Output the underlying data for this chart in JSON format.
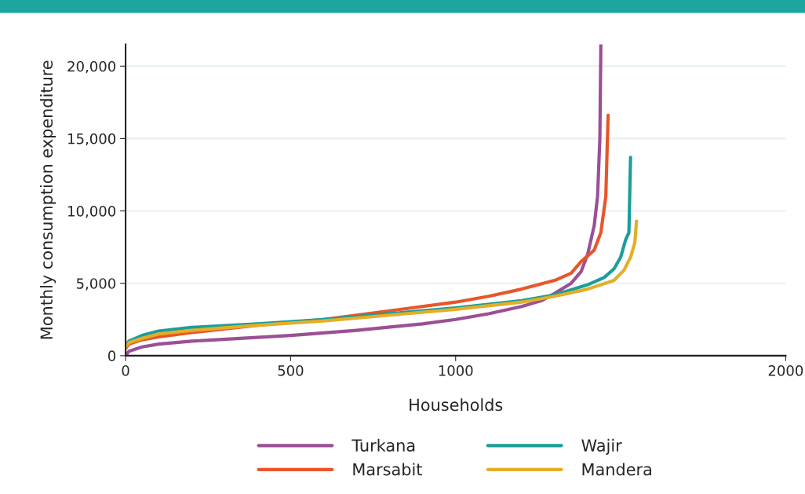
{
  "chart_data": {
    "type": "line",
    "xlabel": "Households",
    "ylabel": "Monthly consumption expenditure",
    "xlim": [
      0,
      2000
    ],
    "xticks": [
      0,
      500,
      1000,
      2000
    ],
    "ylim": [
      0,
      21500
    ],
    "yticks": [
      0,
      {
        "value": 5000,
        "label": "5,000"
      },
      {
        "value": 10000,
        "label": "10,000"
      },
      {
        "value": 15000,
        "label": "15,000"
      },
      {
        "value": 20000,
        "label": "20,000"
      }
    ],
    "grid": "y",
    "legend": "bottom",
    "line_style": "solid",
    "marker": "none",
    "series": [
      {
        "name": "Turkana",
        "color": "#9b4f96",
        "x": [
          0,
          10,
          50,
          100,
          200,
          500,
          700,
          900,
          1000,
          1100,
          1200,
          1260,
          1300,
          1350,
          1380,
          1400,
          1420,
          1430,
          1437,
          1440
        ],
        "values": [
          0,
          300,
          600,
          800,
          1000,
          1400,
          1750,
          2200,
          2500,
          2900,
          3400,
          3800,
          4300,
          5000,
          5800,
          7000,
          9000,
          11000,
          15000,
          21500
        ]
      },
      {
        "name": "Marsabit",
        "color": "#e8562a",
        "x": [
          0,
          10,
          50,
          100,
          200,
          400,
          600,
          800,
          1000,
          1100,
          1200,
          1300,
          1350,
          1380,
          1420,
          1440,
          1455,
          1462
        ],
        "values": [
          500,
          800,
          1100,
          1300,
          1600,
          2100,
          2500,
          3100,
          3700,
          4100,
          4600,
          5200,
          5700,
          6500,
          7300,
          8500,
          11000,
          16600
        ]
      },
      {
        "name": "Wajir",
        "color": "#1a9e9a",
        "x": [
          0,
          10,
          50,
          100,
          200,
          400,
          600,
          800,
          1000,
          1200,
          1300,
          1400,
          1450,
          1480,
          1500,
          1515,
          1525,
          1530
        ],
        "values": [
          700,
          1000,
          1400,
          1700,
          1950,
          2200,
          2500,
          2900,
          3300,
          3800,
          4200,
          4900,
          5400,
          6000,
          6800,
          8000,
          8500,
          13700
        ]
      },
      {
        "name": "Mandera",
        "color": "#e3ae28",
        "x": [
          0,
          10,
          50,
          100,
          200,
          400,
          600,
          800,
          1000,
          1200,
          1300,
          1400,
          1480,
          1510,
          1530,
          1543,
          1548
        ],
        "values": [
          600,
          900,
          1200,
          1500,
          1750,
          2100,
          2400,
          2800,
          3200,
          3700,
          4100,
          4600,
          5200,
          5900,
          6800,
          7800,
          9300
        ]
      }
    ]
  }
}
